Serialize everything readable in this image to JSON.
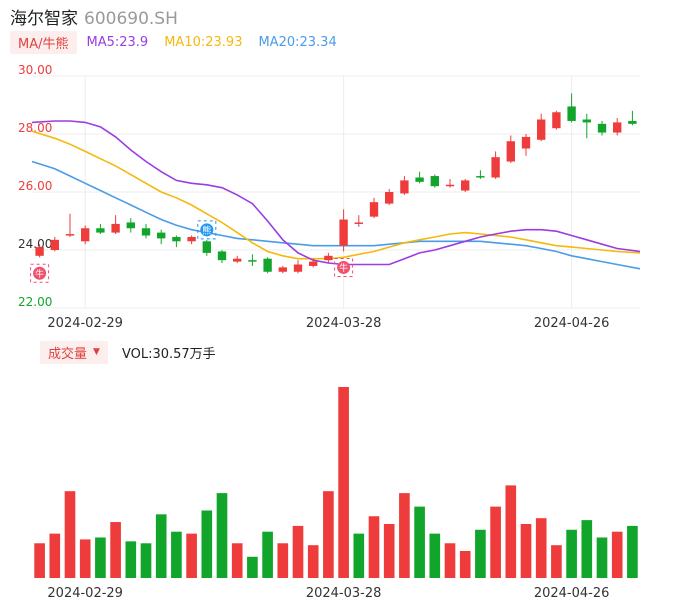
{
  "header": {
    "name": "海尔智家",
    "code": "600690.SH"
  },
  "ma_legend": {
    "selector": "MA/牛熊",
    "ma5": "MA5:23.9",
    "ma10": "MA10:23.93",
    "ma20": "MA20:23.34"
  },
  "volume_legend": {
    "selector": "成交量",
    "value": "VOL:30.57万手"
  },
  "colors": {
    "up": "#ee3b3b",
    "down": "#12a52c",
    "ma5": "#9b3de0",
    "ma10": "#f5b90c",
    "ma20": "#4a9ce8",
    "grid": "#ececec",
    "axis_up": "#ee3b3b",
    "axis_down": "#12a52c",
    "axis_mid": "#333333"
  },
  "chart_data": [
    {
      "type": "candlestick",
      "y_ticks": [
        "30.00",
        "28.00",
        "26.00",
        "24.00",
        "22.00"
      ],
      "ylim": [
        22.0,
        30.0
      ],
      "x_ticks": [
        {
          "label": "2024-02-29",
          "index": 3
        },
        {
          "label": "2024-03-28",
          "index": 20
        },
        {
          "label": "2024-04-26",
          "index": 35
        }
      ],
      "candles": [
        {
          "o": 23.8,
          "c": 24.1,
          "h": 24.2,
          "l": 23.75
        },
        {
          "o": 24.0,
          "c": 24.35,
          "h": 24.45,
          "l": 23.95
        },
        {
          "o": 24.5,
          "c": 24.55,
          "h": 25.25,
          "l": 24.45
        },
        {
          "o": 24.3,
          "c": 24.75,
          "h": 24.85,
          "l": 24.2
        },
        {
          "o": 24.75,
          "c": 24.6,
          "h": 24.9,
          "l": 24.55
        },
        {
          "o": 24.6,
          "c": 24.9,
          "h": 25.2,
          "l": 24.55
        },
        {
          "o": 24.95,
          "c": 24.75,
          "h": 25.1,
          "l": 24.6
        },
        {
          "o": 24.75,
          "c": 24.5,
          "h": 24.9,
          "l": 24.4
        },
        {
          "o": 24.6,
          "c": 24.4,
          "h": 24.7,
          "l": 24.2
        },
        {
          "o": 24.45,
          "c": 24.3,
          "h": 24.5,
          "l": 24.1
        },
        {
          "o": 24.3,
          "c": 24.45,
          "h": 24.5,
          "l": 24.2
        },
        {
          "o": 24.3,
          "c": 23.9,
          "h": 24.35,
          "l": 23.8
        },
        {
          "o": 23.95,
          "c": 23.65,
          "h": 24.0,
          "l": 23.55
        },
        {
          "o": 23.6,
          "c": 23.7,
          "h": 23.8,
          "l": 23.55
        },
        {
          "o": 23.65,
          "c": 23.6,
          "h": 23.85,
          "l": 23.45
        },
        {
          "o": 23.7,
          "c": 23.25,
          "h": 23.75,
          "l": 23.2
        },
        {
          "o": 23.25,
          "c": 23.4,
          "h": 23.45,
          "l": 23.2
        },
        {
          "o": 23.25,
          "c": 23.5,
          "h": 23.65,
          "l": 23.2
        },
        {
          "o": 23.45,
          "c": 23.6,
          "h": 23.7,
          "l": 23.4
        },
        {
          "o": 23.65,
          "c": 23.8,
          "h": 23.9,
          "l": 23.55
        },
        {
          "o": 24.15,
          "c": 25.05,
          "h": 25.4,
          "l": 23.95
        },
        {
          "o": 24.95,
          "c": 24.95,
          "h": 25.2,
          "l": 24.8
        },
        {
          "o": 25.15,
          "c": 25.65,
          "h": 25.8,
          "l": 25.1
        },
        {
          "o": 25.6,
          "c": 26.0,
          "h": 26.1,
          "l": 25.55
        },
        {
          "o": 25.95,
          "c": 26.4,
          "h": 26.55,
          "l": 25.9
        },
        {
          "o": 26.5,
          "c": 26.35,
          "h": 26.7,
          "l": 26.3
        },
        {
          "o": 26.55,
          "c": 26.2,
          "h": 26.6,
          "l": 26.15
        },
        {
          "o": 26.25,
          "c": 26.25,
          "h": 26.45,
          "l": 26.15
        },
        {
          "o": 26.05,
          "c": 26.4,
          "h": 26.45,
          "l": 26.0
        },
        {
          "o": 26.55,
          "c": 26.5,
          "h": 26.75,
          "l": 26.45
        },
        {
          "o": 26.5,
          "c": 27.2,
          "h": 27.4,
          "l": 26.45
        },
        {
          "o": 27.05,
          "c": 27.75,
          "h": 27.95,
          "l": 27.0
        },
        {
          "o": 27.5,
          "c": 27.9,
          "h": 28.0,
          "l": 27.25
        },
        {
          "o": 27.8,
          "c": 28.5,
          "h": 28.7,
          "l": 27.75
        },
        {
          "o": 28.2,
          "c": 28.75,
          "h": 28.8,
          "l": 28.15
        },
        {
          "o": 28.95,
          "c": 28.45,
          "h": 29.4,
          "l": 28.4
        },
        {
          "o": 28.5,
          "c": 28.4,
          "h": 28.7,
          "l": 27.85
        },
        {
          "o": 28.35,
          "c": 28.05,
          "h": 28.45,
          "l": 27.95
        },
        {
          "o": 28.05,
          "c": 28.4,
          "h": 28.55,
          "l": 27.95
        },
        {
          "o": 28.45,
          "c": 28.35,
          "h": 28.8,
          "l": 28.3
        }
      ],
      "ma5": [
        28.4,
        28.45,
        28.45,
        28.4,
        28.25,
        27.9,
        27.45,
        27.05,
        26.7,
        26.4,
        26.3,
        26.25,
        26.15,
        25.9,
        25.6,
        25.0,
        24.35,
        23.9,
        23.65,
        23.55,
        23.5,
        23.5,
        23.5,
        23.5,
        23.7,
        23.9,
        24.0,
        24.15,
        24.3,
        24.45,
        24.55,
        24.65,
        24.7,
        24.7,
        24.65,
        24.5,
        24.35,
        24.2,
        24.05,
        23.95
      ],
      "ma10": [
        28.1,
        27.85,
        27.65,
        27.4,
        27.15,
        26.9,
        26.6,
        26.3,
        26.0,
        25.8,
        25.55,
        25.25,
        24.95,
        24.6,
        24.25,
        23.95,
        23.8,
        23.7,
        23.7,
        23.7,
        23.75,
        23.85,
        23.95,
        24.1,
        24.25,
        24.35,
        24.45,
        24.55,
        24.6,
        24.55,
        24.5,
        24.45,
        24.35,
        24.25,
        24.15,
        24.1,
        24.05,
        24.0,
        23.95,
        23.9
      ],
      "ma20": [
        27.05,
        26.8,
        26.55,
        26.3,
        26.05,
        25.8,
        25.55,
        25.3,
        25.05,
        24.85,
        24.7,
        24.6,
        24.5,
        24.4,
        24.35,
        24.3,
        24.25,
        24.2,
        24.15,
        24.15,
        24.15,
        24.15,
        24.15,
        24.2,
        24.25,
        24.3,
        24.3,
        24.3,
        24.3,
        24.3,
        24.25,
        24.2,
        24.15,
        24.05,
        23.95,
        23.8,
        23.7,
        23.6,
        23.5,
        23.35
      ],
      "markers": [
        {
          "index": 0,
          "glyph": "牛",
          "position": "below"
        },
        {
          "index": 11,
          "glyph": "熊",
          "position": "above"
        },
        {
          "index": 20,
          "glyph": "牛",
          "position": "below"
        }
      ]
    },
    {
      "type": "bar",
      "name": "成交量",
      "values": [
        18,
        23,
        45,
        20,
        21,
        29,
        19,
        18,
        33,
        24,
        23,
        35,
        44,
        18,
        11,
        24,
        18,
        27,
        17,
        45,
        99,
        23,
        32,
        28,
        44,
        37,
        23,
        18,
        14,
        25,
        37,
        48,
        28,
        31,
        17,
        25,
        30,
        21,
        24,
        27
      ],
      "up": [
        1,
        1,
        1,
        1,
        0,
        1,
        0,
        0,
        0,
        0,
        1,
        0,
        0,
        1,
        0,
        0,
        1,
        1,
        1,
        1,
        1,
        0,
        1,
        1,
        1,
        0,
        0,
        1,
        1,
        0,
        1,
        1,
        1,
        1,
        1,
        0,
        0,
        0,
        1,
        0
      ]
    }
  ]
}
